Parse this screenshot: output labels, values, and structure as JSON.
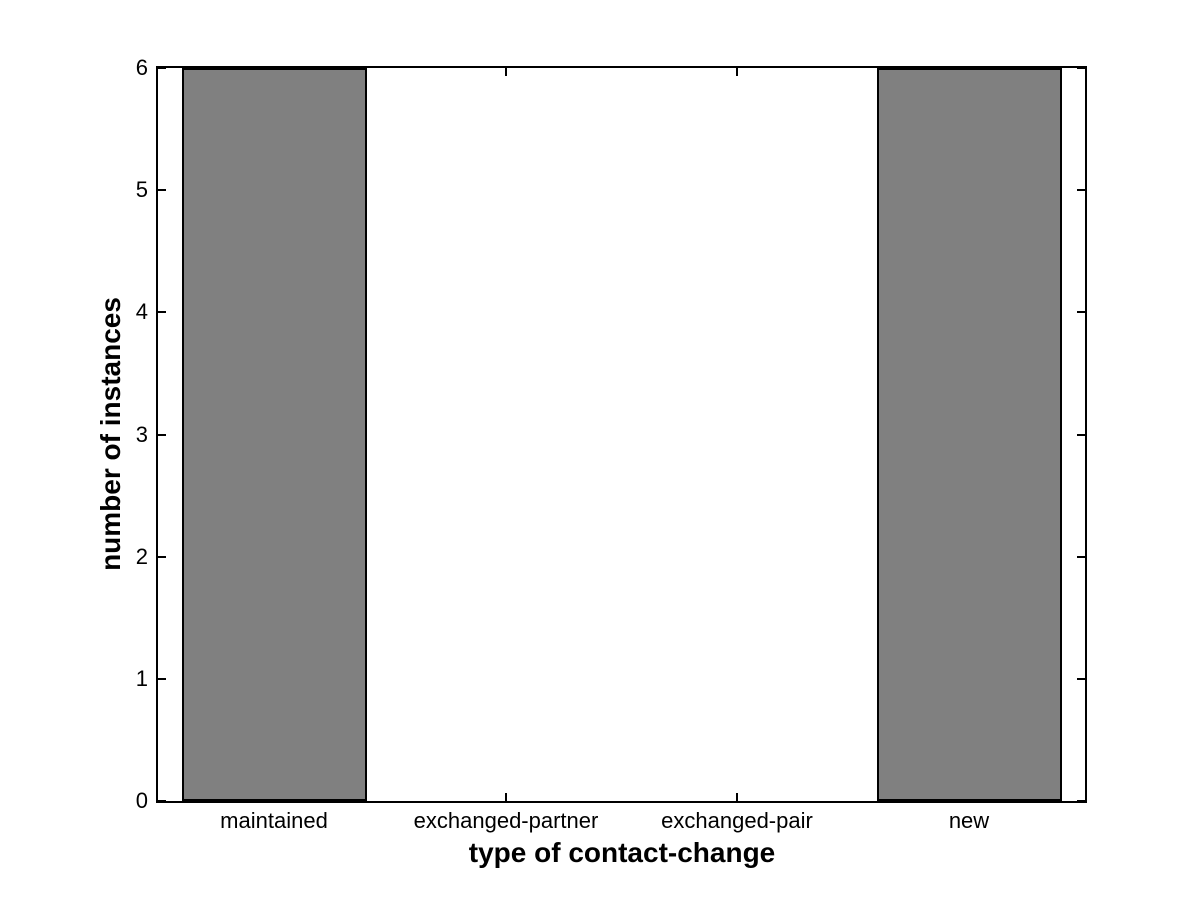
{
  "chart_data": {
    "type": "bar",
    "title": "",
    "xlabel": "type of contact-change",
    "ylabel": "number of instances",
    "categories": [
      "maintained",
      "exchanged-partner",
      "exchanged-pair",
      "new"
    ],
    "values": [
      6,
      0,
      0,
      6
    ],
    "ylim": [
      0,
      6
    ],
    "yticks": [
      0,
      1,
      2,
      3,
      4,
      5,
      6
    ],
    "bar_width_fraction": 0.8,
    "grid": false,
    "legend": "none",
    "colors": {
      "bar_fill": "#808080",
      "bar_edge": "#000000",
      "axis": "#000000",
      "text": "#000000",
      "background": "#ffffff"
    }
  }
}
